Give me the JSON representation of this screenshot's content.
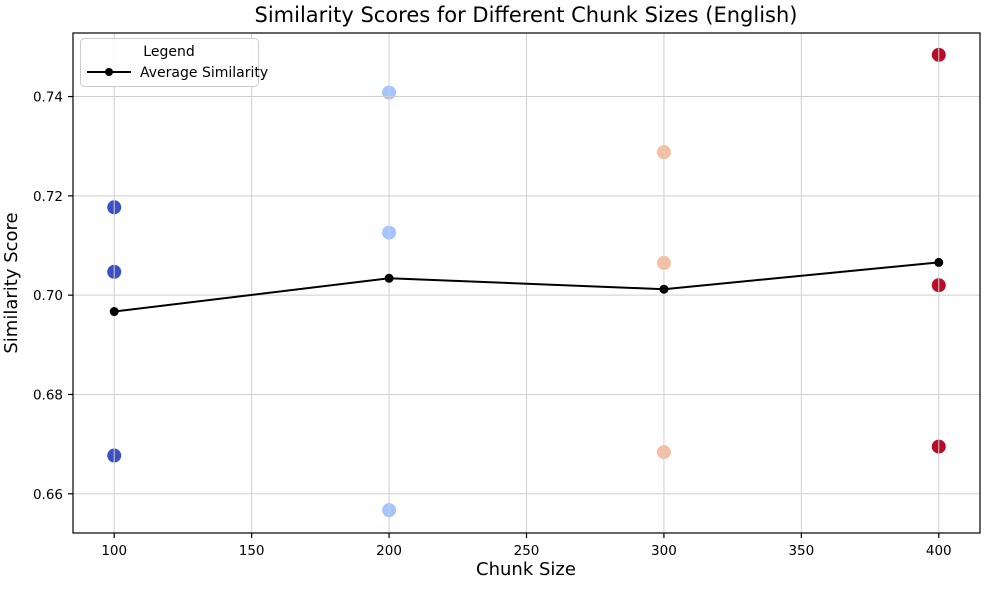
{
  "chart_data": {
    "type": "scatter",
    "title": "Similarity Scores for Different Chunk Sizes (English)",
    "xlabel": "Chunk Size",
    "ylabel": "Similarity Score",
    "xlim": [
      85,
      415
    ],
    "ylim": [
      0.6521,
      0.7528
    ],
    "x_ticks": [
      100,
      150,
      200,
      250,
      300,
      350,
      400
    ],
    "y_ticks": [
      0.66,
      0.68,
      0.7,
      0.72,
      0.74
    ],
    "grid": true,
    "grid_over_points": true,
    "colors": {
      "background": "#FFFFFF",
      "grid": "#CFCFCF",
      "spine": "#000000",
      "average_line": "#000000"
    },
    "scatter_groups": [
      {
        "chunk_size": 100,
        "color": "#3D50C3",
        "similarities": [
          0.7177,
          0.7047,
          0.6677
        ]
      },
      {
        "chunk_size": 200,
        "color": "#A5C3FE",
        "similarities": [
          0.7408,
          0.7126,
          0.6567
        ]
      },
      {
        "chunk_size": 300,
        "color": "#F5BFA3",
        "similarities": [
          0.7288,
          0.7065,
          0.6684
        ]
      },
      {
        "chunk_size": 400,
        "color": "#B70D28",
        "similarities": [
          0.7484,
          0.702,
          0.6695
        ]
      }
    ],
    "average_series": {
      "label": "Average Similarity",
      "x": [
        100,
        200,
        300,
        400
      ],
      "y": [
        0.6967,
        0.7034,
        0.7012,
        0.7066
      ]
    },
    "legend": {
      "title": "Legend",
      "entry": "Average Similarity",
      "position": "upper-left"
    }
  }
}
